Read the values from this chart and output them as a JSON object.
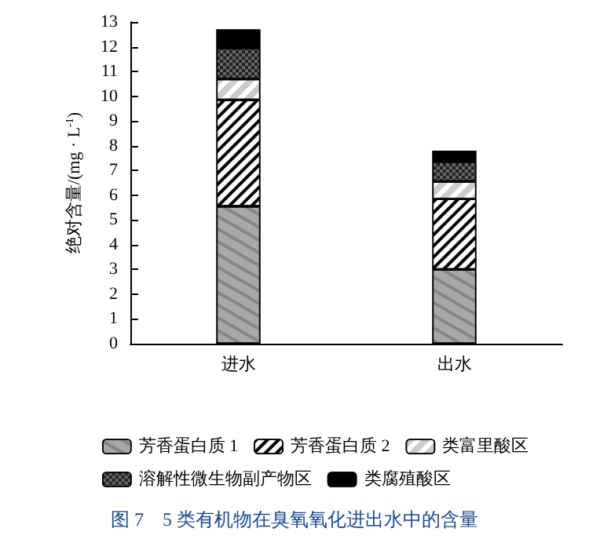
{
  "chart_data": {
    "type": "bar",
    "title": "图 7　5 类有机物在臭氧氧化进出水中的含量",
    "ylabel": "绝对含量/(mg · L$^{-1}$)",
    "categories": [
      "进水",
      "出水"
    ],
    "stacked": true,
    "series": [
      {
        "name": "芳香蛋白质 1",
        "color": "#a8a8a8",
        "values": [
          5.55,
          3.0
        ]
      },
      {
        "name": "芳香蛋白质 2",
        "color": "#ffffff",
        "values": [
          4.3,
          2.85
        ]
      },
      {
        "name": "类富里酸区",
        "color": "#ffffff",
        "values": [
          0.85,
          0.7
        ]
      },
      {
        "name": "溶解性微生物副产物区",
        "color": "#666666",
        "values": [
          1.25,
          0.8
        ]
      },
      {
        "name": "类腐殖酸区",
        "color": "#000000",
        "values": [
          0.75,
          0.45
        ]
      }
    ],
    "ylim": [
      0,
      13
    ],
    "yticks": [
      0,
      1,
      2,
      3,
      4,
      5,
      6,
      7,
      8,
      9,
      10,
      11,
      12,
      13
    ],
    "grid": false,
    "legend": "bottom"
  }
}
